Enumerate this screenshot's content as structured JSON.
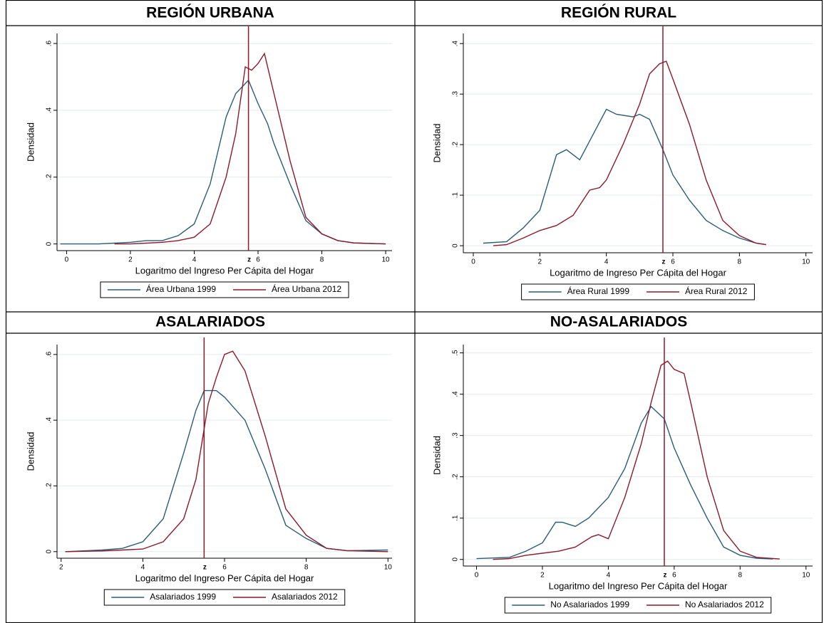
{
  "chart_data": [
    {
      "type": "line",
      "title": "REGIÓN URBANA",
      "xlabel": "Logaritmo del Ingreso Per Cápita del Hogar",
      "ylabel": "Densidad",
      "xlim": [
        -0.3,
        10.2
      ],
      "ylim": [
        -0.02,
        0.63
      ],
      "xticks": [
        0,
        2,
        4,
        6,
        8,
        10
      ],
      "yticks": [
        0,
        {
          "value": 0.2,
          "label": ".2"
        },
        {
          "value": 0.4,
          "label": ".4"
        },
        {
          "value": 0.6,
          "label": ".6"
        }
      ],
      "grid": true,
      "vline": {
        "x": 5.7,
        "label": "z",
        "color": "#8b1a2b"
      },
      "series": [
        {
          "name": "Área Urbana 1999",
          "color": "#2a5d78",
          "x": [
            -0.2,
            1,
            2,
            2.5,
            3,
            3.5,
            4,
            4.5,
            5,
            5.3,
            5.5,
            5.7,
            6,
            6.3,
            6.5,
            7,
            7.5,
            8,
            8.5,
            9,
            10
          ],
          "values": [
            0,
            0,
            0.005,
            0.01,
            0.01,
            0.025,
            0.06,
            0.18,
            0.38,
            0.45,
            0.47,
            0.49,
            0.42,
            0.36,
            0.3,
            0.18,
            0.07,
            0.03,
            0.01,
            0.003,
            0
          ]
        },
        {
          "name": "Área Urbana 2012",
          "color": "#8b1a2b",
          "x": [
            1.5,
            2,
            3,
            3.5,
            4,
            4.5,
            5,
            5.3,
            5.6,
            5.8,
            6,
            6.2,
            6.5,
            7,
            7.5,
            8,
            8.5,
            9,
            10
          ],
          "values": [
            0,
            0,
            0.005,
            0.01,
            0.02,
            0.06,
            0.2,
            0.33,
            0.53,
            0.52,
            0.54,
            0.57,
            0.45,
            0.25,
            0.08,
            0.03,
            0.01,
            0.003,
            0
          ]
        }
      ]
    },
    {
      "type": "line",
      "title": "REGIÓN RURAL",
      "xlabel": "Logaritmo de Ingreso Per Cápita del Hogar",
      "ylabel": "Densidad",
      "xlim": [
        -0.3,
        10.2
      ],
      "ylim": [
        -0.014,
        0.42
      ],
      "xticks": [
        0,
        2,
        4,
        6,
        8,
        10
      ],
      "yticks": [
        0,
        {
          "value": 0.1,
          "label": ".1"
        },
        {
          "value": 0.2,
          "label": ".2"
        },
        {
          "value": 0.3,
          "label": ".3"
        },
        {
          "value": 0.4,
          "label": ".4"
        }
      ],
      "grid": true,
      "vline": {
        "x": 5.7,
        "label": "z",
        "color": "#8b1a2b"
      },
      "series": [
        {
          "name": "Área Rural 1999",
          "color": "#2a5d78",
          "x": [
            0.3,
            1,
            1.5,
            2,
            2.5,
            2.8,
            3.2,
            3.6,
            4,
            4.3,
            4.8,
            5,
            5.3,
            5.7,
            6,
            6.5,
            7,
            7.5,
            8,
            8.5,
            8.8
          ],
          "values": [
            0.005,
            0.008,
            0.035,
            0.07,
            0.18,
            0.19,
            0.17,
            0.22,
            0.27,
            0.26,
            0.255,
            0.26,
            0.25,
            0.19,
            0.14,
            0.09,
            0.05,
            0.03,
            0.015,
            0.005,
            0.002
          ]
        },
        {
          "name": "Área Rural 2012",
          "color": "#8b1a2b",
          "x": [
            0.6,
            1,
            1.5,
            2,
            2.5,
            3,
            3.5,
            3.8,
            4,
            4.5,
            5,
            5.3,
            5.6,
            5.8,
            6,
            6.5,
            7,
            7.5,
            8,
            8.5,
            8.8
          ],
          "values": [
            0,
            0.002,
            0.015,
            0.03,
            0.04,
            0.06,
            0.11,
            0.115,
            0.13,
            0.2,
            0.28,
            0.34,
            0.36,
            0.365,
            0.33,
            0.24,
            0.13,
            0.05,
            0.02,
            0.005,
            0.002
          ]
        }
      ]
    },
    {
      "type": "line",
      "title": "ASALARIADOS",
      "xlabel": "Logaritmo del Ingreso Per Cápita del Hogar",
      "ylabel": "Densidad",
      "xlim": [
        1.9,
        10.1
      ],
      "ylim": [
        -0.02,
        0.63
      ],
      "xticks": [
        2,
        4,
        6,
        8,
        10
      ],
      "yticks": [
        0,
        {
          "value": 0.2,
          "label": ".2"
        },
        {
          "value": 0.4,
          "label": ".4"
        },
        {
          "value": 0.6,
          "label": ".6"
        }
      ],
      "grid": true,
      "vline": {
        "x": 5.5,
        "label": "z",
        "color": "#8b1a2b"
      },
      "series": [
        {
          "name": "Asalariados 1999",
          "color": "#2a5d78",
          "x": [
            2.1,
            3,
            3.5,
            4,
            4.5,
            5,
            5.3,
            5.5,
            5.8,
            6,
            6.5,
            7,
            7.5,
            8,
            8.5,
            9,
            10
          ],
          "values": [
            0,
            0.005,
            0.01,
            0.03,
            0.1,
            0.3,
            0.43,
            0.49,
            0.49,
            0.47,
            0.4,
            0.25,
            0.08,
            0.04,
            0.01,
            0.003,
            0.005
          ]
        },
        {
          "name": "Asalariados 2012",
          "color": "#8b1a2b",
          "x": [
            2.1,
            3,
            3.5,
            4,
            4.5,
            5,
            5.3,
            5.6,
            5.8,
            6,
            6.2,
            6.5,
            7,
            7.5,
            8,
            8.5,
            9,
            10
          ],
          "values": [
            0,
            0.002,
            0.005,
            0.008,
            0.03,
            0.1,
            0.22,
            0.45,
            0.53,
            0.6,
            0.61,
            0.55,
            0.35,
            0.13,
            0.05,
            0.01,
            0.003,
            0
          ]
        }
      ]
    },
    {
      "type": "line",
      "title": "NO-ASALARIADOS",
      "xlabel": "Logaritmo del Ingreso Per Cápita del Hogar",
      "ylabel": "Densidad",
      "xlim": [
        -0.4,
        10.2
      ],
      "ylim": [
        -0.016,
        0.52
      ],
      "xticks": [
        0,
        2,
        4,
        6,
        8,
        10
      ],
      "yticks": [
        0,
        {
          "value": 0.1,
          "label": ".1"
        },
        {
          "value": 0.2,
          "label": ".2"
        },
        {
          "value": 0.3,
          "label": ".3"
        },
        {
          "value": 0.4,
          "label": ".4"
        },
        {
          "value": 0.5,
          "label": ".5"
        }
      ],
      "grid": true,
      "vline": {
        "x": 5.7,
        "label": "z",
        "color": "#8b1a2b"
      },
      "series": [
        {
          "name": "No Asalariados 1999",
          "color": "#2a5d78",
          "x": [
            0,
            1,
            1.5,
            2,
            2.4,
            2.6,
            3,
            3.4,
            4,
            4.5,
            5,
            5.3,
            5.7,
            6,
            6.5,
            7,
            7.5,
            8,
            8.5,
            9
          ],
          "values": [
            0.002,
            0.005,
            0.02,
            0.04,
            0.09,
            0.09,
            0.08,
            0.1,
            0.15,
            0.22,
            0.33,
            0.37,
            0.34,
            0.27,
            0.18,
            0.1,
            0.03,
            0.01,
            0.003,
            0.001
          ]
        },
        {
          "name": "No Asalariados 2012",
          "color": "#8b1a2b",
          "x": [
            0.5,
            1,
            1.5,
            2,
            2.5,
            3,
            3.5,
            3.7,
            4,
            4.5,
            5,
            5.3,
            5.6,
            5.8,
            6,
            6.3,
            6.5,
            7,
            7.5,
            8,
            8.5,
            9.2
          ],
          "values": [
            0,
            0.002,
            0.01,
            0.015,
            0.02,
            0.03,
            0.055,
            0.06,
            0.05,
            0.15,
            0.28,
            0.38,
            0.47,
            0.48,
            0.46,
            0.45,
            0.38,
            0.2,
            0.07,
            0.02,
            0.005,
            0.001
          ]
        }
      ]
    }
  ]
}
